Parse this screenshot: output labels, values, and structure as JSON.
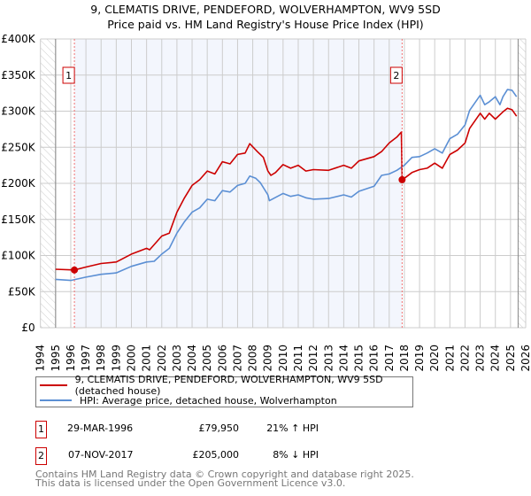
{
  "title": "9, CLEMATIS DRIVE, PENDEFORD, WOLVERHAMPTON, WV9 5SD",
  "subtitle": "Price paid vs. HM Land Registry's House Price Index (HPI)",
  "chart_data": {
    "type": "line",
    "title": "9, CLEMATIS DRIVE, PENDEFORD, WOLVERHAMPTON, WV9 5SD",
    "subtitle": "Price paid vs. HM Land Registry's House Price Index (HPI)",
    "xlim": [
      1994,
      2026
    ],
    "ylim": [
      0,
      400000
    ],
    "x_ticks": [
      "1994",
      "1995",
      "1996",
      "1997",
      "1998",
      "1999",
      "2000",
      "2001",
      "2002",
      "2003",
      "2004",
      "2005",
      "2006",
      "2007",
      "2008",
      "2009",
      "2010",
      "2011",
      "2012",
      "2013",
      "2014",
      "2015",
      "2016",
      "2017",
      "2018",
      "2019",
      "2020",
      "2021",
      "2022",
      "2023",
      "2024",
      "2025",
      "2026"
    ],
    "y_ticks": [
      {
        "v": 0,
        "label": "£0"
      },
      {
        "v": 50000,
        "label": "£50K"
      },
      {
        "v": 100000,
        "label": "£100K"
      },
      {
        "v": 150000,
        "label": "£150K"
      },
      {
        "v": 200000,
        "label": "£200K"
      },
      {
        "v": 250000,
        "label": "£250K"
      },
      {
        "v": 300000,
        "label": "£300K"
      },
      {
        "v": 350000,
        "label": "£350K"
      },
      {
        "v": 400000,
        "label": "£400K"
      }
    ],
    "grid": true,
    "series": [
      {
        "name": "9, CLEMATIS DRIVE, PENDEFORD, WOLVERHAMPTON, WV9 5SD (detached house)",
        "color": "#cc0000",
        "x": [
          1995,
          1996.24,
          1997,
          1998,
          1999,
          2000,
          2001,
          2001.2,
          2002,
          2002.5,
          2003,
          2003.5,
          2004,
          2004.5,
          2005,
          2005.5,
          2006,
          2006.5,
          2007,
          2007.5,
          2007.8,
          2008.3,
          2008.7,
          2009,
          2009.2,
          2009.5,
          2010,
          2010.5,
          2011,
          2011.5,
          2012,
          2013,
          2014,
          2014.5,
          2015,
          2016,
          2016.5,
          2017,
          2017.5,
          2017.8,
          2017.85,
          2018,
          2018.5,
          2019,
          2019.5,
          2020,
          2020.5,
          2021,
          2021.5,
          2022,
          2022.3,
          2023,
          2023.3,
          2023.6,
          2024,
          2024.5,
          2024.8,
          2025.1,
          2025.4
        ],
        "y": [
          81000,
          79950,
          84000,
          89000,
          91000,
          102000,
          110000,
          108000,
          127000,
          131000,
          160000,
          180000,
          197000,
          205000,
          217000,
          213000,
          230000,
          227000,
          240000,
          242000,
          255000,
          244000,
          236000,
          217000,
          211000,
          215000,
          226000,
          221000,
          225000,
          217000,
          219000,
          218000,
          225000,
          221000,
          231000,
          237000,
          244000,
          256000,
          264000,
          271000,
          205000,
          207000,
          215000,
          219000,
          221000,
          228000,
          221000,
          240000,
          246000,
          256000,
          276000,
          297000,
          289000,
          297000,
          289000,
          299000,
          304000,
          302000,
          293000
        ]
      },
      {
        "name": "HPI: Average price, detached house, Wolverhampton",
        "color": "#5b8fd4",
        "x": [
          1995,
          1996,
          1997,
          1998,
          1999,
          2000,
          2001,
          2001.5,
          2002,
          2002.5,
          2003,
          2003.5,
          2004,
          2004.5,
          2005,
          2005.5,
          2006,
          2006.5,
          2007,
          2007.5,
          2007.8,
          2008.2,
          2008.5,
          2009,
          2009.1,
          2010,
          2010.5,
          2011,
          2011.5,
          2012,
          2013,
          2014,
          2014.5,
          2015,
          2016,
          2016.5,
          2017,
          2017.5,
          2018,
          2018.5,
          2019,
          2019.5,
          2020,
          2020.5,
          2021,
          2021.5,
          2022,
          2022.3,
          2023,
          2023.3,
          2023.6,
          2024,
          2024.3,
          2024.5,
          2024.8,
          2025.1,
          2025.4
        ],
        "y": [
          67000,
          65500,
          70000,
          74000,
          76000,
          85000,
          91000,
          92000,
          102000,
          110000,
          131000,
          147000,
          160000,
          166000,
          178000,
          176000,
          190000,
          188000,
          197000,
          200000,
          210000,
          207000,
          201000,
          184000,
          176000,
          186000,
          182000,
          184000,
          180000,
          178000,
          179000,
          184000,
          181000,
          189000,
          196000,
          211000,
          213000,
          218000,
          225000,
          236000,
          237000,
          242000,
          248000,
          242000,
          262000,
          268000,
          281000,
          301000,
          322000,
          309000,
          313000,
          320000,
          309000,
          320000,
          330000,
          329000,
          320000
        ]
      }
    ],
    "sales": [
      {
        "id": "1",
        "x": 1996.24,
        "y": 79950
      },
      {
        "id": "2",
        "x": 2017.85,
        "y": 205000
      }
    ],
    "shaded_range": [
      1996.24,
      2017.85
    ],
    "hatched_ranges": [
      [
        1994,
        1995
      ],
      [
        2025.5,
        2026
      ]
    ]
  },
  "legend": {
    "items": [
      {
        "label": "9, CLEMATIS DRIVE, PENDEFORD, WOLVERHAMPTON, WV9 5SD (detached house)",
        "color": "#cc0000"
      },
      {
        "label": "HPI: Average price, detached house, Wolverhampton",
        "color": "#5b8fd4"
      }
    ]
  },
  "transactions": [
    {
      "id": "1",
      "date": "29-MAR-1996",
      "price": "£79,950",
      "hpi": "21% ↑ HPI"
    },
    {
      "id": "2",
      "date": "07-NOV-2017",
      "price": "£205,000",
      "hpi": "8% ↓ HPI"
    }
  ],
  "footer": {
    "line1": "Contains HM Land Registry data © Crown copyright and database right 2025.",
    "line2": "This data is licensed under the Open Government Licence v3.0."
  }
}
